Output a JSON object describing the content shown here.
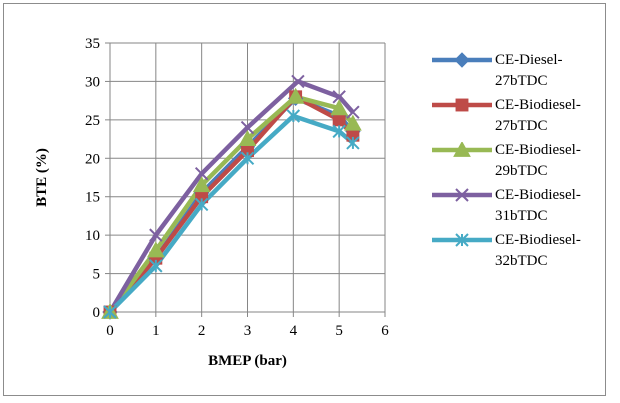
{
  "chart_data": {
    "type": "line",
    "xlabel": "BMEP (bar)",
    "ylabel": "BTE (%)",
    "xlim": [
      0,
      6
    ],
    "ylim": [
      0,
      35
    ],
    "xticks": [
      "0",
      "1",
      "2",
      "3",
      "4",
      "5",
      "6"
    ],
    "yticks": [
      "0",
      "5",
      "10",
      "15",
      "20",
      "25",
      "30",
      "35"
    ],
    "grid": "vertical and horizontal major gridlines",
    "legend_position": "right",
    "series": [
      {
        "name": "CE-Diesel-27bTDC",
        "color": "#4a7ebb",
        "marker": "diamond",
        "x": [
          0,
          1,
          2,
          3,
          4.05,
          5,
          5.3
        ],
        "y": [
          0,
          7,
          15.5,
          21.5,
          27.8,
          25.5,
          23.5
        ]
      },
      {
        "name": "CE-Biodiesel-27bTDC",
        "color": "#be4b48",
        "marker": "square",
        "x": [
          0,
          1,
          2,
          3,
          4.05,
          5,
          5.3
        ],
        "y": [
          0,
          7,
          15,
          21,
          28,
          25,
          23
        ]
      },
      {
        "name": "CE-Biodiesel-29bTDC",
        "color": "#98b954",
        "marker": "triangle",
        "x": [
          0,
          1,
          2,
          3,
          4.05,
          5,
          5.3
        ],
        "y": [
          0,
          8,
          16.5,
          22.5,
          28,
          26.5,
          24.5
        ]
      },
      {
        "name": "CE-Biodiesel-31bTDC",
        "color": "#7d60a0",
        "marker": "x",
        "x": [
          0,
          1,
          2,
          3,
          4.1,
          5,
          5.3
        ],
        "y": [
          0,
          10,
          18,
          24,
          30,
          28,
          26
        ]
      },
      {
        "name": "CE-Biodiesel-32bTDC",
        "color": "#46aac5",
        "marker": "star",
        "x": [
          0,
          1,
          2,
          3,
          4,
          5,
          5.3
        ],
        "y": [
          0,
          6,
          14,
          20,
          25.5,
          23.5,
          22
        ]
      }
    ]
  }
}
